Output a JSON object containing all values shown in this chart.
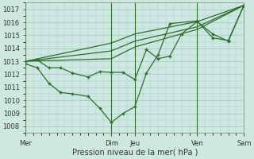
{
  "background_color": "#cce8e0",
  "grid_color": "#a8ccc8",
  "line_color": "#2d6e2d",
  "xlabel": "Pression niveau de la mer( hPa )",
  "ylim": [
    1007.5,
    1017.5
  ],
  "yticks": [
    1008,
    1009,
    1010,
    1011,
    1012,
    1013,
    1014,
    1015,
    1016,
    1017
  ],
  "xlim": [
    0,
    56
  ],
  "vline_positions": [
    0,
    22,
    28,
    44,
    56
  ],
  "xtick_positions": [
    0,
    22,
    28,
    44,
    56
  ],
  "xtick_labels": [
    "Mer",
    "Dim",
    "Jeu",
    "Ven",
    "Sam"
  ],
  "trend1_x": [
    0,
    22,
    28,
    44,
    56
  ],
  "trend1_y": [
    1013.0,
    1014.4,
    1015.1,
    1016.05,
    1017.3
  ],
  "trend2_x": [
    0,
    22,
    28,
    44,
    56
  ],
  "trend2_y": [
    1013.0,
    1013.8,
    1014.55,
    1015.65,
    1017.3
  ],
  "trend3_x": [
    0,
    22,
    28,
    44,
    56
  ],
  "trend3_y": [
    1013.0,
    1013.2,
    1014.1,
    1015.45,
    1017.3
  ],
  "main_x": [
    0,
    3,
    6,
    9,
    12,
    16,
    19,
    22,
    25,
    28,
    31,
    34,
    37,
    40,
    44,
    48,
    52,
    56
  ],
  "main_y": [
    1013.0,
    1013.1,
    1012.5,
    1012.5,
    1012.1,
    1011.8,
    1012.2,
    1012.15,
    1012.15,
    1011.6,
    1013.9,
    1013.2,
    1013.4,
    1015.1,
    1016.05,
    1015.1,
    1014.55,
    1017.3
  ],
  "secondary_x": [
    0,
    3,
    6,
    9,
    12,
    16,
    19,
    22,
    25,
    28,
    31,
    34,
    37,
    44,
    48,
    52,
    56
  ],
  "secondary_y": [
    1012.8,
    1012.5,
    1011.3,
    1010.6,
    1010.5,
    1010.3,
    1009.4,
    1008.3,
    1009.0,
    1009.5,
    1012.1,
    1013.5,
    1015.9,
    1016.1,
    1014.8,
    1014.6,
    1017.3
  ]
}
